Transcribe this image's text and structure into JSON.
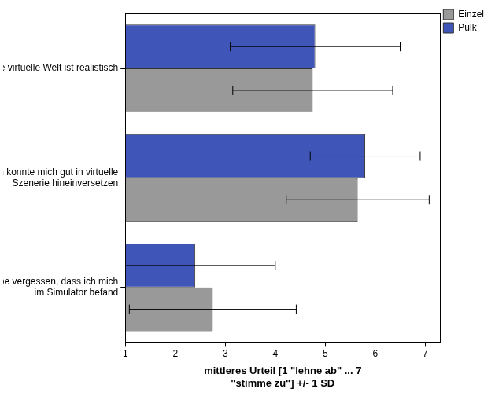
{
  "chart_data": {
    "type": "bar",
    "orientation": "horizontal",
    "categories": [
      "Die virtuelle Welt ist realistisch",
      [
        "Ich konnte mich gut in virtuelle",
        "Szenerie hineinversetzen"
      ],
      [
        "Ich habe vergessen, dass ich mich",
        "im Simulator befand"
      ]
    ],
    "series": [
      {
        "name": "Pulk",
        "color": "#3f55b8",
        "values": [
          4.8,
          5.8,
          2.4
        ],
        "sd": [
          1.7,
          1.1,
          1.6
        ]
      },
      {
        "name": "Einzel",
        "color": "#999999",
        "values": [
          4.75,
          5.65,
          2.75
        ],
        "sd": [
          1.6,
          1.43,
          1.67
        ]
      }
    ],
    "x_label": [
      "mittleres Urteil [1 \"lehne ab\" ... 7",
      "\"stimme zu\"] +/- 1 SD"
    ],
    "xlim": [
      1,
      7.3
    ],
    "xticks": [
      1,
      2,
      3,
      4,
      5,
      6,
      7
    ],
    "grid": false,
    "legend": "right"
  }
}
